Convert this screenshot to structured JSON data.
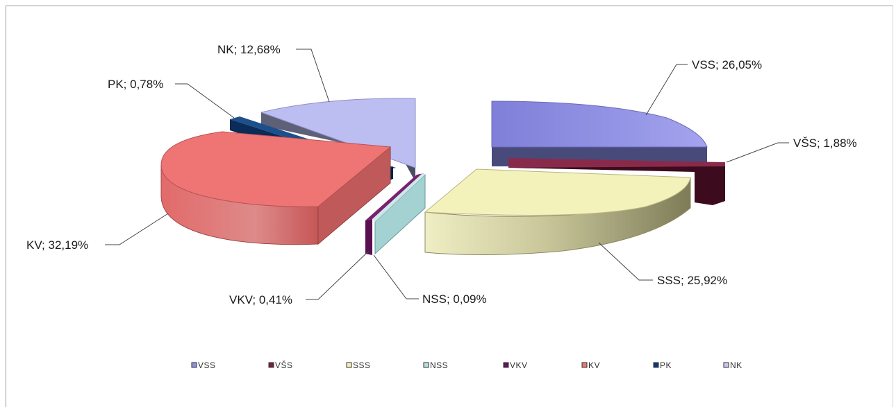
{
  "chart_data": {
    "type": "pie",
    "variant": "exploded-3d",
    "title": "",
    "legend_position": "bottom",
    "slices": [
      {
        "label": "VSS",
        "value": 26.05,
        "value_text": "VSS; 26,05%",
        "color": "#8e8ee6"
      },
      {
        "label": "VŠS",
        "value": 1.88,
        "value_text": "VŠS; 1,88%",
        "color": "#7a1e3c"
      },
      {
        "label": "SSS",
        "value": 25.92,
        "value_text": "SSS; 25,92%",
        "color": "#f1f0b8"
      },
      {
        "label": "NSS",
        "value": 0.09,
        "value_text": "NSS; 0,09%",
        "color": "#b9dede"
      },
      {
        "label": "VKV",
        "value": 0.41,
        "value_text": "VKV; 0,41%",
        "color": "#62155a"
      },
      {
        "label": "KV",
        "value": 32.19,
        "value_text": "KV; 32,19%",
        "color": "#ec7575"
      },
      {
        "label": "PK",
        "value": 0.78,
        "value_text": "PK; 0,78%",
        "color": "#0e3a74"
      },
      {
        "label": "NK",
        "value": 12.68,
        "value_text": "NK; 12,68%",
        "color": "#c7c8f2"
      }
    ]
  }
}
